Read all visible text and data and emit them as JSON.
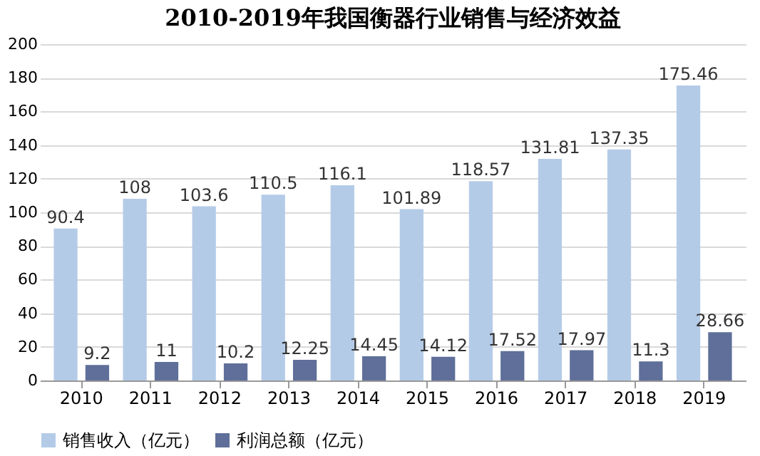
{
  "chart_data": {
    "type": "bar",
    "title": "2010-2019年我国衡器行业销售与经济效益",
    "categories": [
      "2010",
      "2011",
      "2012",
      "2013",
      "2014",
      "2015",
      "2016",
      "2017",
      "2018",
      "2019"
    ],
    "series": [
      {
        "name": "销售收入（亿元）",
        "color": "#b4cbe8",
        "values": [
          90.4,
          108,
          103.6,
          110.5,
          116.1,
          101.89,
          118.57,
          131.81,
          137.35,
          175.46
        ]
      },
      {
        "name": "利润总额（亿元）",
        "color": "#5f6f9a",
        "values": [
          9.2,
          11,
          10.2,
          12.25,
          14.45,
          14.12,
          17.52,
          17.97,
          11.3,
          28.66
        ]
      }
    ],
    "ylim": [
      0,
      200
    ],
    "yticks": [
      0,
      20,
      40,
      60,
      80,
      100,
      120,
      140,
      160,
      180,
      200
    ],
    "grid": "y",
    "legend": "bottom",
    "data_labels": true
  }
}
